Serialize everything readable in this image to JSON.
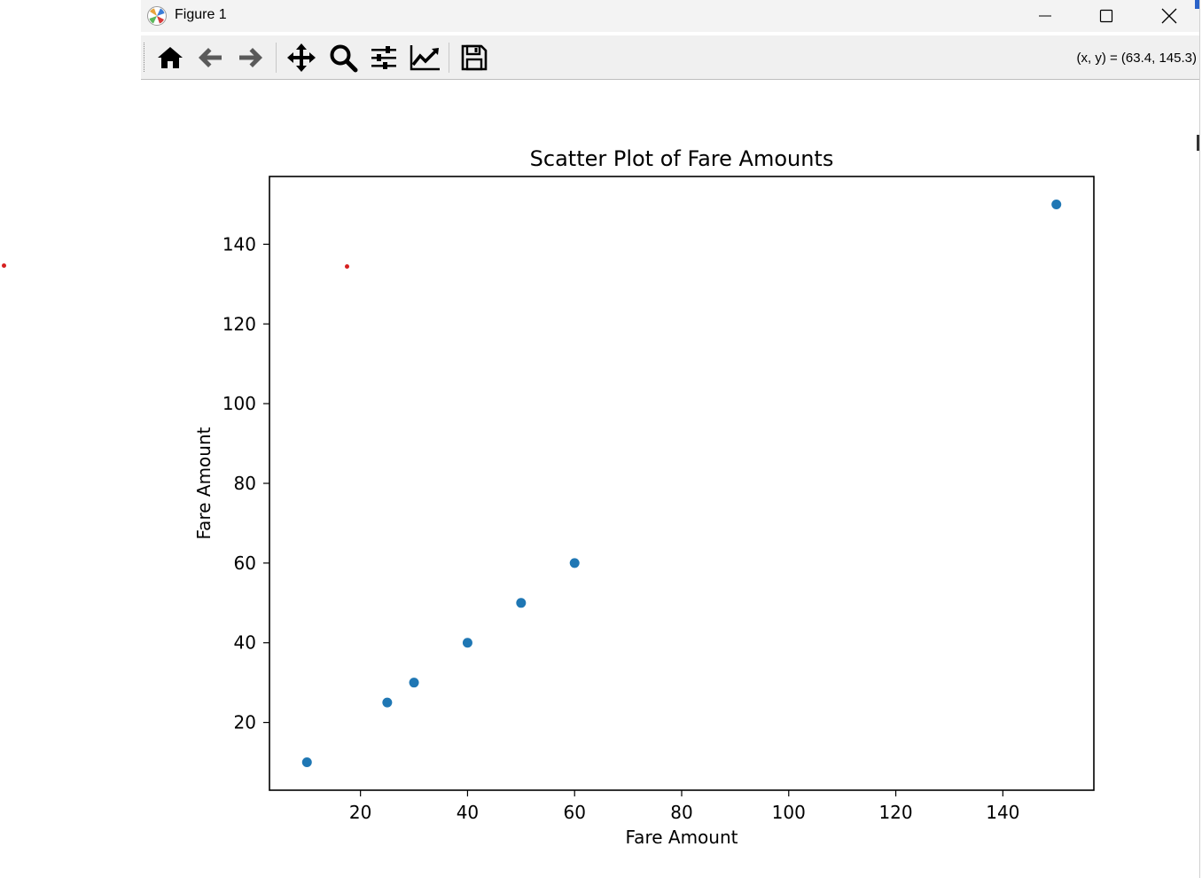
{
  "window": {
    "title": "Figure 1",
    "minimize_icon": "minimize-icon",
    "maximize_icon": "maximize-icon",
    "close_icon": "close-icon"
  },
  "toolbar": {
    "buttons": [
      {
        "name": "home",
        "icon": "home-icon"
      },
      {
        "name": "back",
        "icon": "back-arrow-icon"
      },
      {
        "name": "forward",
        "icon": "forward-arrow-icon"
      },
      {
        "name": "pan",
        "icon": "pan-move-icon"
      },
      {
        "name": "zoom",
        "icon": "zoom-magnifier-icon"
      },
      {
        "name": "configure-subplots",
        "icon": "sliders-icon"
      },
      {
        "name": "edit-axis",
        "icon": "line-chart-icon"
      },
      {
        "name": "save",
        "icon": "floppy-disk-icon"
      }
    ],
    "coordinates": "(x, y) = (63.4, 145.3)"
  },
  "chart_data": {
    "type": "scatter",
    "title": "Scatter Plot of Fare Amounts",
    "xlabel": "Fare Amount",
    "ylabel": "Fare Amount",
    "xlim": [
      3,
      157
    ],
    "ylim": [
      3,
      157
    ],
    "xticks": [
      20,
      40,
      60,
      80,
      100,
      120,
      140
    ],
    "yticks": [
      20,
      40,
      60,
      80,
      100,
      120,
      140
    ],
    "grid": false,
    "marker_color": "#1f77b4",
    "points": [
      {
        "x": 10,
        "y": 10
      },
      {
        "x": 25,
        "y": 25
      },
      {
        "x": 30,
        "y": 30
      },
      {
        "x": 40,
        "y": 40
      },
      {
        "x": 50,
        "y": 50
      },
      {
        "x": 60,
        "y": 60
      },
      {
        "x": 150,
        "y": 150
      }
    ]
  }
}
